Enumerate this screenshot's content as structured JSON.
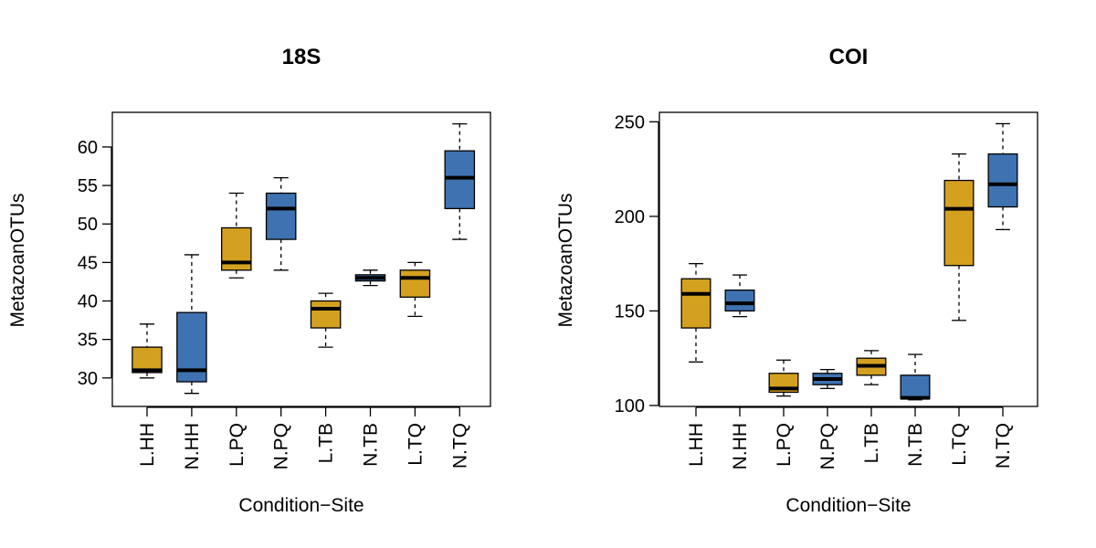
{
  "chart_data": [
    {
      "type": "boxplot",
      "title": "18S",
      "xlabel": "Condition−Site",
      "ylabel": "MetazoanOTUs",
      "ylim": [
        26.3,
        64.5
      ],
      "yticks": [
        30,
        35,
        40,
        45,
        50,
        55,
        60
      ],
      "grid": false,
      "colors": {
        "L": "#D4A020",
        "N": "#3F72B0"
      },
      "categories": [
        "L.HH",
        "N.HH",
        "L.PQ",
        "N.PQ",
        "L.TB",
        "N.TB",
        "L.TQ",
        "N.TQ"
      ],
      "boxes": [
        {
          "label": "L.HH",
          "group": "L",
          "min": 30,
          "q1": 30.7,
          "median": 31,
          "q3": 34,
          "max": 37
        },
        {
          "label": "N.HH",
          "group": "N",
          "min": 28,
          "q1": 29.5,
          "median": 31,
          "q3": 38.5,
          "max": 46
        },
        {
          "label": "L.PQ",
          "group": "L",
          "min": 43,
          "q1": 44,
          "median": 45,
          "q3": 49.5,
          "max": 54
        },
        {
          "label": "N.PQ",
          "group": "N",
          "min": 44,
          "q1": 48,
          "median": 52,
          "q3": 54,
          "max": 56
        },
        {
          "label": "L.TB",
          "group": "L",
          "min": 34,
          "q1": 36.5,
          "median": 39,
          "q3": 40,
          "max": 41
        },
        {
          "label": "N.TB",
          "group": "N",
          "min": 42,
          "q1": 42.6,
          "median": 43,
          "q3": 43.4,
          "max": 44
        },
        {
          "label": "L.TQ",
          "group": "L",
          "min": 38,
          "q1": 40.5,
          "median": 43,
          "q3": 44,
          "max": 45
        },
        {
          "label": "N.TQ",
          "group": "N",
          "min": 48,
          "q1": 52,
          "median": 56,
          "q3": 59.5,
          "max": 63
        }
      ]
    },
    {
      "type": "boxplot",
      "title": "COI",
      "xlabel": "Condition−Site",
      "ylabel": "MetazoanOTUs",
      "ylim": [
        99.5,
        255
      ],
      "yticks": [
        100,
        150,
        200,
        250
      ],
      "grid": false,
      "colors": {
        "L": "#D4A020",
        "N": "#3F72B0"
      },
      "categories": [
        "L.HH",
        "N.HH",
        "L.PQ",
        "N.PQ",
        "L.TB",
        "N.TB",
        "L.TQ",
        "N.TQ"
      ],
      "boxes": [
        {
          "label": "L.HH",
          "group": "L",
          "min": 123,
          "q1": 141,
          "median": 159,
          "q3": 167,
          "max": 175
        },
        {
          "label": "N.HH",
          "group": "N",
          "min": 147,
          "q1": 150,
          "median": 154,
          "q3": 161,
          "max": 169
        },
        {
          "label": "L.PQ",
          "group": "L",
          "min": 105,
          "q1": 107,
          "median": 109,
          "q3": 117,
          "max": 124
        },
        {
          "label": "N.PQ",
          "group": "N",
          "min": 109,
          "q1": 111,
          "median": 114,
          "q3": 117,
          "max": 119
        },
        {
          "label": "L.TB",
          "group": "L",
          "min": 111,
          "q1": 116,
          "median": 121,
          "q3": 125,
          "max": 129
        },
        {
          "label": "N.TB",
          "group": "N",
          "min": 103,
          "q1": 103.5,
          "median": 104,
          "q3": 116,
          "max": 127
        },
        {
          "label": "L.TQ",
          "group": "L",
          "min": 145,
          "q1": 174,
          "median": 204,
          "q3": 219,
          "max": 233
        },
        {
          "label": "N.TQ",
          "group": "N",
          "min": 193,
          "q1": 205,
          "median": 217,
          "q3": 233,
          "max": 249
        }
      ]
    }
  ]
}
